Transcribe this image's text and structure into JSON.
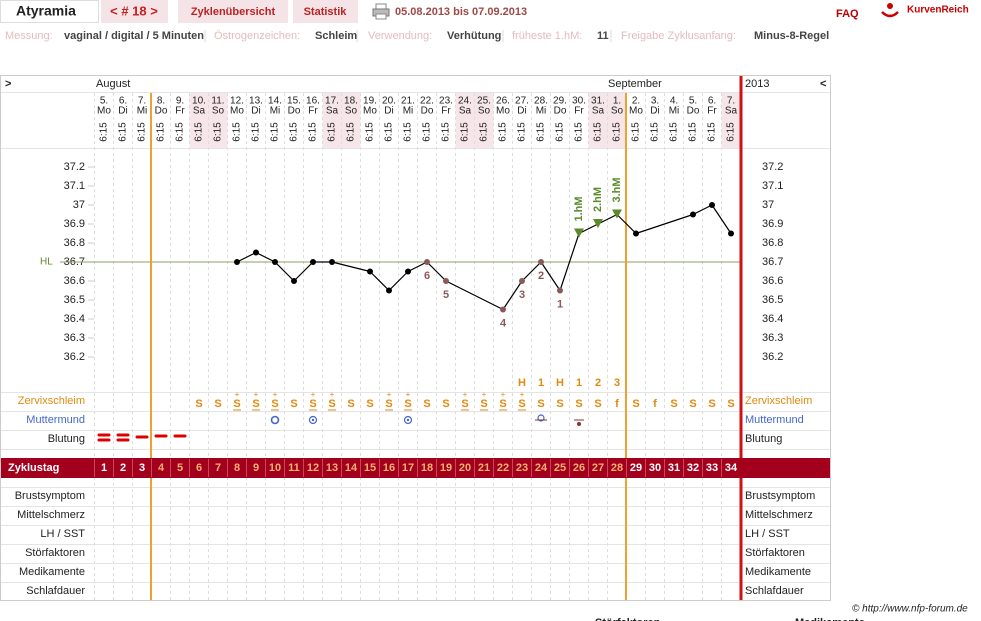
{
  "header": {
    "title": "Atyramia",
    "cycle": "< # 18 >",
    "tabs": [
      "Zyklenübersicht",
      "Statistik"
    ],
    "date_range": "05.08.2013 bis 07.09.2013",
    "faq": "FAQ",
    "brand": "KurvenReich"
  },
  "info": [
    {
      "label": "Messung:",
      "value": "vaginal / digital / 5 Minuten"
    },
    {
      "label": "Östrogenzeichen:",
      "value": "Schleim"
    },
    {
      "label": "Verwendung:",
      "value": "Verhütung"
    },
    {
      "label": "früheste 1.hM:",
      "value": "11"
    },
    {
      "label": "Freigabe Zyklusanfang:",
      "value": "Minus-8-Regel"
    }
  ],
  "chart_data": {
    "type": "line",
    "nav_left": ">",
    "nav_right": "<",
    "months": [
      "August",
      "September"
    ],
    "year": "2013",
    "dates": [
      "5.",
      "6.",
      "7.",
      "8.",
      "9.",
      "10.",
      "11.",
      "12.",
      "13.",
      "14.",
      "15.",
      "16.",
      "17.",
      "18.",
      "19.",
      "20.",
      "21.",
      "22.",
      "23.",
      "24.",
      "25.",
      "26.",
      "27.",
      "28.",
      "29.",
      "30.",
      "31.",
      "1.",
      "2.",
      "3.",
      "4.",
      "5.",
      "6.",
      "7."
    ],
    "weekdays": [
      "Mo",
      "Di",
      "Mi",
      "Do",
      "Fr",
      "Sa",
      "So",
      "Mo",
      "Di",
      "Mi",
      "Do",
      "Fr",
      "Sa",
      "So",
      "Mo",
      "Di",
      "Mi",
      "Do",
      "Fr",
      "Sa",
      "So",
      "Mo",
      "Di",
      "Mi",
      "Do",
      "Fr",
      "Sa",
      "So",
      "Mo",
      "Di",
      "Mi",
      "Do",
      "Fr",
      "Sa"
    ],
    "times": [
      "6:15",
      "6:15",
      "6:15",
      "6:15",
      "6:15",
      "6:15",
      "6:15",
      "6:15",
      "6:15",
      "6:15",
      "6:15",
      "6:15",
      "6:15",
      "6:15",
      "6:15",
      "6:15",
      "6:15",
      "6:15",
      "6:15",
      "6:15",
      "6:15",
      "6:15",
      "6:15",
      "6:15",
      "6:15",
      "6:15",
      "6:15",
      "6:15",
      "6:15",
      "6:15",
      "6:15",
      "6:15",
      "6:15",
      "6:15"
    ],
    "values": [
      null,
      null,
      null,
      null,
      null,
      null,
      null,
      36.7,
      36.75,
      36.7,
      36.6,
      36.7,
      36.7,
      null,
      36.65,
      36.55,
      36.65,
      36.7,
      36.6,
      null,
      null,
      36.45,
      36.6,
      36.7,
      36.55,
      36.85,
      36.9,
      36.95,
      36.85,
      null,
      null,
      36.95,
      37.0,
      36.85
    ],
    "point_labels": [
      null,
      null,
      null,
      null,
      null,
      null,
      null,
      null,
      null,
      null,
      null,
      null,
      null,
      null,
      null,
      null,
      null,
      "6",
      "5",
      null,
      null,
      "4",
      "3",
      "2",
      "1",
      null,
      null,
      null,
      null,
      null,
      null,
      null,
      null,
      null
    ],
    "hm_labels": [
      null,
      null,
      null,
      null,
      null,
      null,
      null,
      null,
      null,
      null,
      null,
      null,
      null,
      null,
      null,
      null,
      null,
      null,
      null,
      null,
      null,
      null,
      null,
      null,
      null,
      "1.hM",
      "2.hM",
      "3.hM",
      null,
      null,
      null,
      null,
      null,
      null
    ],
    "ylim": [
      36.0,
      37.3
    ],
    "yticks": [
      36.2,
      36.3,
      36.4,
      36.5,
      36.6,
      36.7,
      36.8,
      36.9,
      37,
      37.1,
      37.2
    ],
    "coverline": 36.7,
    "coverline_label": "HL",
    "color": "#000000"
  },
  "rows": {
    "zervix_label": "Zervixschleim",
    "zervix": [
      null,
      null,
      null,
      null,
      null,
      "S",
      "S",
      "S",
      "S",
      "S",
      "S",
      "S",
      "S",
      "S",
      "S",
      "S",
      "S",
      "S",
      "S",
      "S",
      "S",
      "S",
      "S",
      "S",
      "S",
      "S",
      "S",
      "f",
      "S",
      "f",
      "S",
      "S",
      "S",
      "S"
    ],
    "zervix_plus": [
      null,
      null,
      null,
      null,
      null,
      null,
      null,
      "+",
      "+",
      "+",
      null,
      "+",
      "+",
      null,
      null,
      "+",
      "+",
      null,
      null,
      "+",
      "+",
      "+",
      "+",
      null,
      null,
      null,
      null,
      null,
      null,
      null,
      null,
      null,
      null,
      null
    ],
    "peak": [
      null,
      null,
      null,
      null,
      null,
      null,
      null,
      null,
      null,
      null,
      null,
      null,
      null,
      null,
      null,
      null,
      null,
      null,
      null,
      null,
      null,
      null,
      "H",
      "1",
      "H",
      "1",
      "2",
      "3",
      null,
      null,
      null,
      null,
      null,
      null
    ],
    "muttermund_label": "Muttermund",
    "blutung_label": "Blutung",
    "zyklustag_label": "Zyklustag",
    "cycle_days": [
      1,
      2,
      3,
      4,
      5,
      6,
      7,
      8,
      9,
      10,
      11,
      12,
      13,
      14,
      15,
      16,
      17,
      18,
      19,
      20,
      21,
      22,
      23,
      24,
      25,
      26,
      27,
      28,
      29,
      30,
      31,
      32,
      33,
      34
    ],
    "extra_labels": [
      "Brustsymptom",
      "Mittelschmerz",
      "LH / SST",
      "Störfaktoren",
      "Medikamente",
      "Schlafdauer"
    ]
  },
  "footer": {
    "copyright": "© http://www.nfp-forum.de",
    "below": [
      "Störfaktoren",
      "Medikamente"
    ]
  }
}
